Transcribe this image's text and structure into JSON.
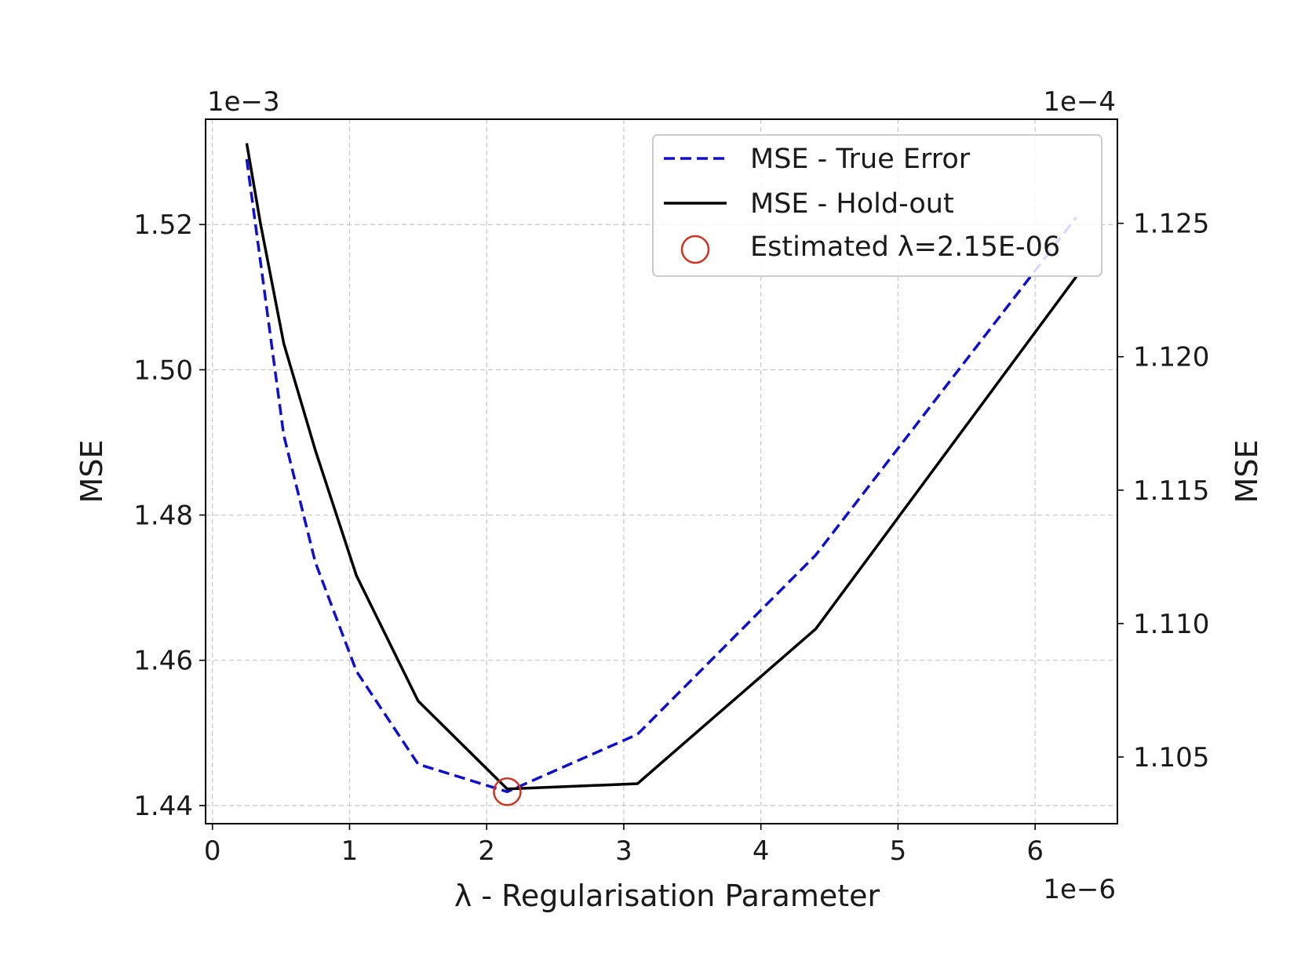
{
  "chart_data": {
    "type": "line",
    "x_offset_label": "1e−6",
    "left_offset_label": "1e−3",
    "right_offset_label": "1e−4",
    "xlabel": "λ - Regularisation Parameter",
    "ylabel_left": "MSE",
    "ylabel_right": "MSE",
    "xlim": [
      -0.05,
      6.6
    ],
    "ylim_left": [
      1.4375,
      1.5345
    ],
    "ylim_right": [
      1.1025,
      1.1289
    ],
    "x_ticks": [
      0,
      1,
      2,
      3,
      4,
      5,
      6
    ],
    "x_tick_labels": [
      "0",
      "1",
      "2",
      "3",
      "4",
      "5",
      "6"
    ],
    "y_left_ticks": [
      1.44,
      1.46,
      1.48,
      1.5,
      1.52
    ],
    "y_left_tick_labels": [
      "1.44",
      "1.46",
      "1.48",
      "1.50",
      "1.52"
    ],
    "y_right_ticks": [
      1.105,
      1.11,
      1.115,
      1.12,
      1.125
    ],
    "y_right_tick_labels": [
      "1.105",
      "1.110",
      "1.115",
      "1.120",
      "1.125"
    ],
    "grid": true,
    "legend_position": "top-right",
    "series": [
      {
        "name": "MSE - True Error",
        "axis": "left",
        "style": "dashed",
        "color": "#1010cc",
        "x": [
          0.25,
          0.52,
          0.75,
          1.05,
          1.5,
          2.15,
          3.1,
          4.4,
          6.3
        ],
        "y": [
          1.529,
          1.491,
          1.4735,
          1.4585,
          1.4457,
          1.4419,
          1.4498,
          1.4745,
          1.521
        ]
      },
      {
        "name": "MSE - Hold-out",
        "axis": "right",
        "style": "solid",
        "color": "#000000",
        "x": [
          0.25,
          0.35,
          0.52,
          0.75,
          1.05,
          1.5,
          2.15,
          3.1,
          4.4,
          6.3
        ],
        "y": [
          1.128,
          1.125,
          1.1205,
          1.1165,
          1.1118,
          1.1071,
          1.1038,
          1.104,
          1.1098,
          1.123
        ]
      }
    ],
    "marker": {
      "name": "Estimated λ=2.15E-06",
      "x": 2.15,
      "y": 1.4419,
      "axis": "left",
      "color": "#cc3322"
    }
  }
}
